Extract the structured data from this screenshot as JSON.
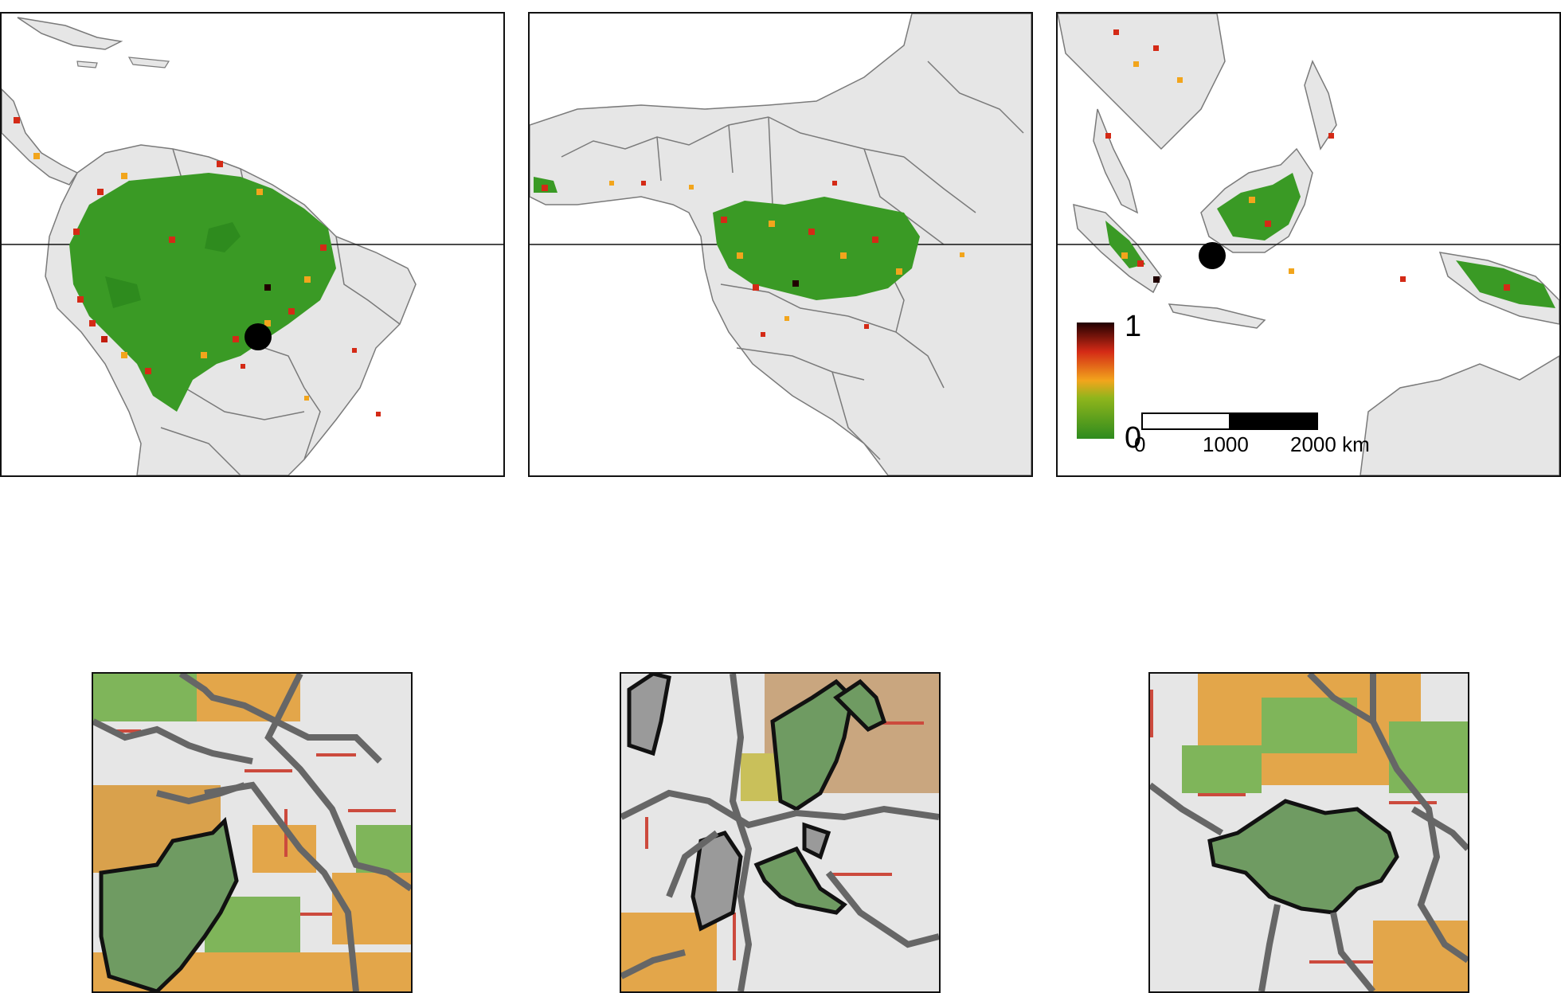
{
  "colors": {
    "land": "#e6e6e6",
    "border": "#7a7a7a",
    "low": "#2e8b1e",
    "mid": "#f2a51c",
    "high": "#d42a16",
    "max": "#200000",
    "site": "#000000"
  },
  "panels": [
    {
      "name": "south-america-map"
    },
    {
      "name": "central-africa-map"
    },
    {
      "name": "southeast-asia-map"
    }
  ],
  "legend": {
    "max_label": "1",
    "min_label": "0"
  },
  "scalebar": {
    "labels": [
      "0",
      "1000",
      "2000 km"
    ]
  },
  "zooms": [
    {
      "name": "amazon-site-zoom"
    },
    {
      "name": "congo-site-zoom"
    },
    {
      "name": "borneo-site-zoom"
    }
  ]
}
